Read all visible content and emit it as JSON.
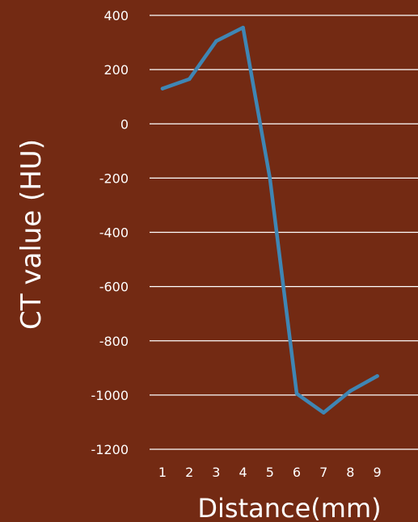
{
  "chart_data": {
    "type": "line",
    "xlabel": "Distance(mm)",
    "ylabel": "CT value (HU)",
    "x": [
      1,
      2,
      3,
      4,
      5,
      6,
      7,
      8,
      9
    ],
    "categories": [
      "1",
      "2",
      "3",
      "4",
      "5",
      "6",
      "7",
      "8",
      "9"
    ],
    "y_ticks": [
      400,
      200,
      0,
      -200,
      -400,
      -600,
      -800,
      -1000,
      -1200
    ],
    "ylim": [
      -1200,
      400
    ],
    "grid": true,
    "legend": "none",
    "series": [
      {
        "values": [
          130,
          165,
          305,
          355,
          -200,
          -995,
          -1065,
          -985,
          -930
        ]
      }
    ]
  },
  "colors": {
    "background": "#732a13",
    "line": "#3f86b4",
    "grid": "#ffffff",
    "text": "#ffffff"
  }
}
